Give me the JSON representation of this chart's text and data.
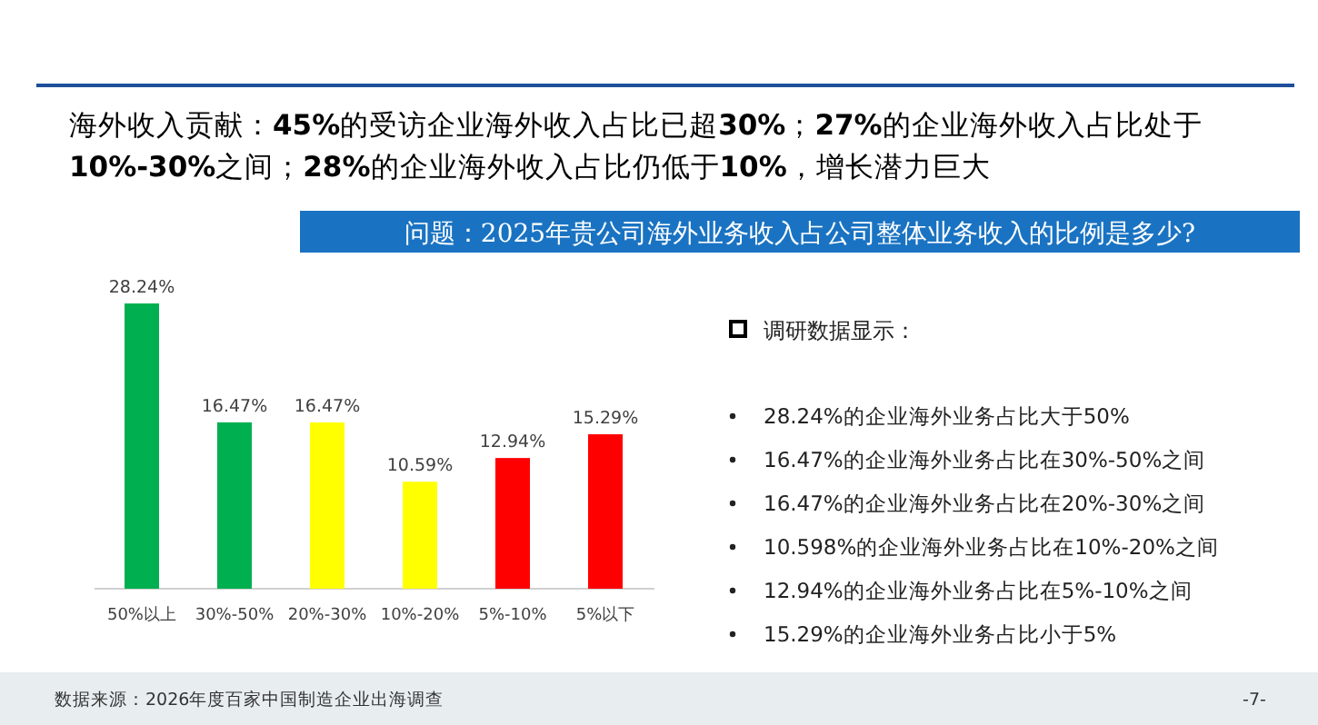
{
  "chart_data": [
    {
      "type": "bar",
      "title": "海外收入贡献：**45%**的受访企业海外收入占比已超**30%**；**27%**的企业海外收入占比处于**10%-30%**之间；**28%**的企业海外收入占比仍低于**10%**，增长潜力巨大",
      "subtitle": "问题：2025年贵公司海外业务收入占公司整体业务收入的比例是多少?",
      "categories": [
        "50%以上",
        "30%-50%",
        "20%-30%",
        "10%-20%",
        "5%-10%",
        "5%以下"
      ],
      "values": [
        28.24,
        16.47,
        16.47,
        10.59,
        12.94,
        15.29
      ],
      "colors": [
        "#00b050",
        "#00b050",
        "#ffff00",
        "#ffff00",
        "#ff0000",
        "#ff0000"
      ],
      "value_labels": [
        "28.24%",
        "16.47%",
        "16.47%",
        "10.59%",
        "12.94%",
        "15.29%"
      ],
      "annotations": [
        "数据来源：2026年度百家中国制造企业出海调查",
        "-7-"
      ]
    },
    {
      "type": "other",
      "title": "调研数据显示：",
      "annotations": [
        "28.24%的企业海外业务占比大于50%",
        "16.47%的企业海外业务占比在30%-50%之间",
        "16.47%的企业海外业务占比在20%-30%之间",
        "10.598%的企业海外业务占比在10%-20%之间",
        "12.94%的企业海外业务占比在5%-10%之间",
        "15.29%的企业海外业务占比小于5%"
      ]
    }
  ]
}
